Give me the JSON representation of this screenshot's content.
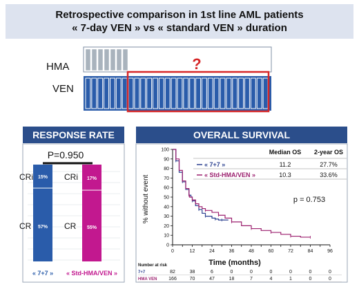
{
  "title": {
    "line1": "Retrospective comparison in 1st line AML patients",
    "line2": "« 7-day VEN » vs « standard VEN » duration"
  },
  "schema": {
    "hma_label": "HMA",
    "ven_label": "VEN",
    "question_mark": "?",
    "colors": {
      "hma": "#a9b3bd",
      "ven": "#2a5caa",
      "highlight": "#d62728"
    }
  },
  "response_rate": {
    "header": "RESPONSE RATE",
    "pvalue": "P=0.950",
    "bars": [
      {
        "group": "« 7+7 »",
        "cri_label": "CRi",
        "cr_label": "CR",
        "cri_pct": "15%",
        "cr_pct": "57%",
        "color": "#2a5caa"
      },
      {
        "group": "« Std-HMA/VEN »",
        "cri_label": "CRi",
        "cr_label": "CR",
        "cri_pct": "17%",
        "cr_pct": "55%",
        "color": "#c2188f"
      }
    ]
  },
  "overall_survival": {
    "header": "OVERALL SURVIVAL",
    "ylabel": "% without event",
    "xlabel": "Time (months)",
    "table_head_median": "Median OS",
    "table_head_2yr": "2-year OS",
    "pvalue": "p = 0.753",
    "groups": [
      {
        "label": "« 7+7 »",
        "median": "11.2",
        "two_year": "27.7%",
        "color": "#2a3f8f"
      },
      {
        "label": "« Std-HMA/VEN »",
        "median": "10.3",
        "two_year": "33.6%",
        "color": "#9b1f6e"
      }
    ],
    "risk_title": "Number at risk",
    "risk_rows": [
      {
        "label": "7+7",
        "values": [
          "82",
          "38",
          "6",
          "0",
          "0",
          "0",
          "0",
          "0",
          "0"
        ]
      },
      {
        "label": "HMA VEN",
        "values": [
          "166",
          "70",
          "47",
          "18",
          "7",
          "4",
          "1",
          "0",
          "0"
        ]
      }
    ]
  },
  "chart_data": {
    "type": "line",
    "xlabel": "Time (months)",
    "ylabel": "% without event",
    "xlim": [
      0,
      96
    ],
    "ylim": [
      0,
      100
    ],
    "x_ticks": [
      "0",
      "12",
      "24",
      "36",
      "48",
      "60",
      "72",
      "84",
      "96"
    ],
    "y_ticks": [
      "0",
      "10",
      "20",
      "30",
      "40",
      "50",
      "60",
      "70",
      "80",
      "90",
      "100"
    ],
    "series": [
      {
        "name": "« 7+7 »",
        "x": [
          0,
          2,
          4,
          6,
          8,
          10,
          11.2,
          12,
          14,
          16,
          18,
          20,
          24,
          26,
          28,
          30,
          34
        ],
        "y": [
          100,
          88,
          76,
          66,
          58,
          52,
          50,
          46,
          41,
          37,
          33,
          30,
          28,
          27,
          26,
          26,
          26
        ]
      },
      {
        "name": "« Std-HMA/VEN »",
        "x": [
          0,
          2,
          4,
          6,
          8,
          10,
          10.3,
          12,
          14,
          16,
          18,
          20,
          24,
          28,
          32,
          36,
          42,
          48,
          54,
          60,
          66,
          72,
          78,
          84
        ],
        "y": [
          100,
          90,
          78,
          67,
          59,
          52,
          50,
          47,
          43,
          40,
          38,
          36,
          34,
          31,
          28,
          24,
          20,
          17,
          15,
          13,
          11,
          9,
          8,
          8
        ]
      }
    ]
  }
}
